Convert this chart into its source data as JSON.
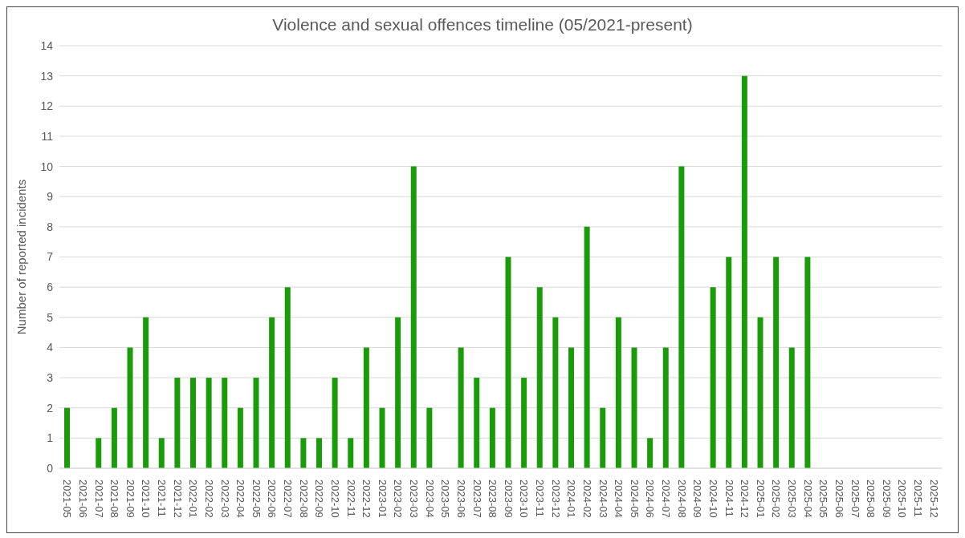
{
  "chart_data": {
    "type": "bar",
    "title": "Violence and sexual offences timeline (05/2021-present)",
    "ylabel": "Number  of reported incidents",
    "categories": [
      "2021-05",
      "2021-06",
      "2021-07",
      "2021-08",
      "2021-09",
      "2021-10",
      "2021-11",
      "2021-12",
      "2022-01",
      "2022-02",
      "2022-03",
      "2022-04",
      "2022-05",
      "2022-06",
      "2022-07",
      "2022-08",
      "2022-09",
      "2022-10",
      "2022-11",
      "2022-12",
      "2023-01",
      "2023-02",
      "2023-03",
      "2023-04",
      "2023-05",
      "2023-06",
      "2023-07",
      "2023-08",
      "2023-09",
      "2023-10",
      "2023-11",
      "2023-12",
      "2024-01",
      "2024-02",
      "2024-03",
      "2024-04",
      "2024-05",
      "2024-06",
      "2024-07",
      "2024-08",
      "2024-09",
      "2024-10",
      "2024-11",
      "2024-12",
      "2025-01",
      "2025-02",
      "2025-03",
      "2025-04",
      "2025-05",
      "2025-06",
      "2025-07",
      "2025-08",
      "2025-09",
      "2025-10",
      "2025-11",
      "2025-12"
    ],
    "values": [
      2,
      0,
      1,
      2,
      4,
      5,
      1,
      3,
      3,
      3,
      3,
      2,
      3,
      5,
      6,
      1,
      1,
      3,
      1,
      4,
      2,
      5,
      10,
      2,
      0,
      4,
      3,
      2,
      7,
      3,
      6,
      5,
      4,
      8,
      2,
      5,
      4,
      1,
      4,
      10,
      0,
      6,
      7,
      13,
      5,
      7,
      4,
      7,
      null,
      null,
      null,
      null,
      null,
      null,
      null,
      null
    ],
    "color": "#1a9c0a",
    "ylim": [
      0,
      14
    ],
    "yticks": [
      0,
      1,
      2,
      3,
      4,
      5,
      6,
      7,
      8,
      9,
      10,
      11,
      12,
      13,
      14
    ],
    "grid": "y"
  }
}
